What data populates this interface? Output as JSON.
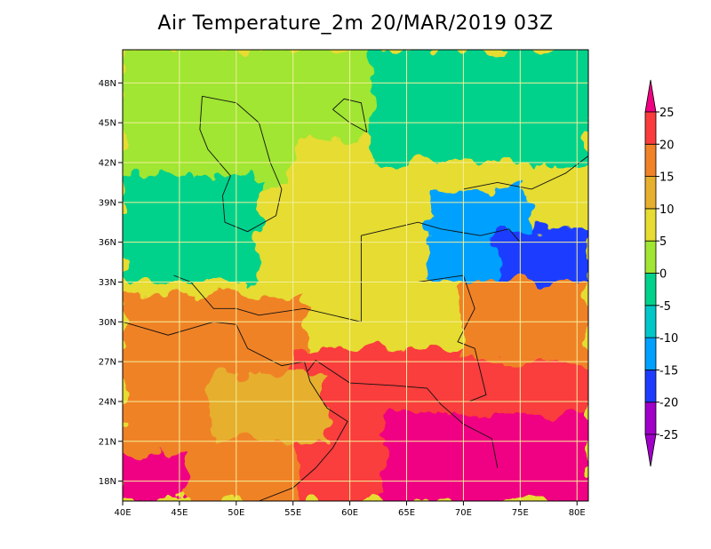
{
  "title": "Air Temperature_2m 20/MAR/2019 03Z",
  "map": {
    "lon_range": [
      40,
      81
    ],
    "lat_range": [
      16.5,
      50.5
    ],
    "lon_ticks": [
      {
        "value": 40,
        "label": "40E"
      },
      {
        "value": 45,
        "label": "45E"
      },
      {
        "value": 50,
        "label": "50E"
      },
      {
        "value": 55,
        "label": "55E"
      },
      {
        "value": 60,
        "label": "60E"
      },
      {
        "value": 65,
        "label": "65E"
      },
      {
        "value": 70,
        "label": "70E"
      },
      {
        "value": 75,
        "label": "75E"
      },
      {
        "value": 80,
        "label": "80E"
      }
    ],
    "lat_ticks": [
      {
        "value": 18,
        "label": "18N"
      },
      {
        "value": 21,
        "label": "21N"
      },
      {
        "value": 24,
        "label": "24N"
      },
      {
        "value": 27,
        "label": "27N"
      },
      {
        "value": 30,
        "label": "30N"
      },
      {
        "value": 33,
        "label": "33N"
      },
      {
        "value": 36,
        "label": "36N"
      },
      {
        "value": 39,
        "label": "39N"
      },
      {
        "value": 42,
        "label": "42N"
      },
      {
        "value": 45,
        "label": "45N"
      },
      {
        "value": 48,
        "label": "48N"
      }
    ],
    "gridline_color": "#f3ef9a"
  },
  "colorbar": {
    "levels": [
      -25,
      -20,
      -15,
      -10,
      -5,
      0,
      5,
      10,
      15,
      20,
      25
    ],
    "labels": [
      "-25",
      "-20",
      "-15",
      "-10",
      "-5",
      "0",
      "5",
      "10",
      "15",
      "20",
      "25"
    ],
    "colors": [
      "#a000c8",
      "#1e3cff",
      "#00a0ff",
      "#00c8c8",
      "#00d28c",
      "#a0e632",
      "#e6dc32",
      "#e6af2d",
      "#f08228",
      "#fa3c3c",
      "#f00082"
    ],
    "extend": "both"
  },
  "chart_data": {
    "type": "heatmap",
    "title": "Air Temperature_2m 20/MAR/2019 03Z",
    "xlabel": "",
    "ylabel": "",
    "x_range": [
      40,
      81
    ],
    "y_range": [
      16.5,
      50.5
    ],
    "x_ticks": [
      "40E",
      "45E",
      "50E",
      "55E",
      "60E",
      "65E",
      "70E",
      "75E",
      "80E"
    ],
    "y_ticks": [
      "18N",
      "21N",
      "24N",
      "27N",
      "30N",
      "33N",
      "36N",
      "39N",
      "42N",
      "45N",
      "48N"
    ],
    "units_levels": [
      -25,
      -20,
      -15,
      -10,
      -5,
      0,
      5,
      10,
      15,
      20,
      25
    ],
    "regions": [
      {
        "name": "",
        "lon": [
          40,
          81
        ],
        "lat": [
          16.5,
          50.5
        ],
        "value": 7
      },
      {
        "lon": [
          40,
          55
        ],
        "lat": [
          40,
          50.5
        ],
        "value": 2
      },
      {
        "lon": [
          55,
          68
        ],
        "lat": [
          44,
          50.5
        ],
        "value": 2
      },
      {
        "lon": [
          62,
          81
        ],
        "lat": [
          42,
          50.5
        ],
        "value": -3
      },
      {
        "lon": [
          40,
          52
        ],
        "lat": [
          33,
          41
        ],
        "value": -2
      },
      {
        "lon": [
          67,
          76
        ],
        "lat": [
          33,
          40
        ],
        "value": -12
      },
      {
        "lon": [
          73,
          81
        ],
        "lat": [
          29,
          37
        ],
        "value": -17
      },
      {
        "lon": [
          40,
          56
        ],
        "lat": [
          16.5,
          32
        ],
        "value": 17
      },
      {
        "lon": [
          55,
          81
        ],
        "lat": [
          16.5,
          28
        ],
        "value": 22
      },
      {
        "lon": [
          70,
          81
        ],
        "lat": [
          27,
          33
        ],
        "value": 17
      },
      {
        "lon": [
          63,
          81
        ],
        "lat": [
          16.5,
          23
        ],
        "value": 26
      },
      {
        "lon": [
          40,
          46
        ],
        "lat": [
          16.5,
          20
        ],
        "value": 26
      },
      {
        "lon": [
          48,
          58
        ],
        "lat": [
          21,
          26
        ],
        "value": 13
      }
    ]
  }
}
